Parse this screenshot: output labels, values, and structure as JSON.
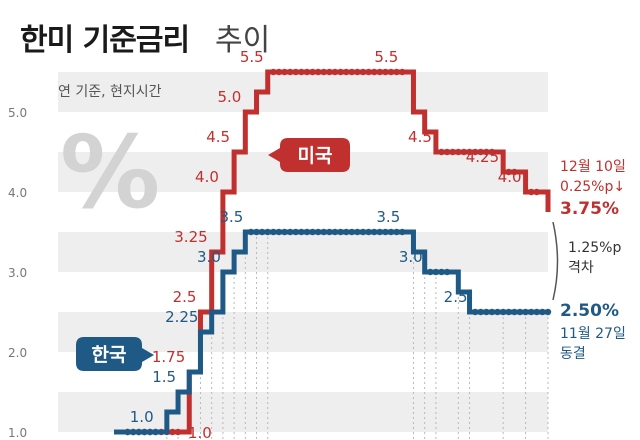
{
  "title": {
    "main": "한미 기준금리",
    "sub": "추이"
  },
  "note": "연 기준, 현지시간",
  "percent_symbol": "%",
  "colors": {
    "us": "#c0302e",
    "kr": "#1f5a86",
    "band": "#eeeeee"
  },
  "chart_data": {
    "type": "line",
    "line_shape": "step",
    "ylim": [
      1.0,
      5.5
    ],
    "yticks": [
      "1.0",
      "2.0",
      "3.0",
      "4.0",
      "5.0"
    ],
    "grid": "horizontal bands",
    "series": [
      {
        "name": "미국",
        "values": [
          1.0,
          1.0,
          1.0,
          1.0,
          1.0,
          1.0,
          1.75,
          2.5,
          3.25,
          4.0,
          4.5,
          5.0,
          5.25,
          5.5,
          5.5,
          5.5,
          5.5,
          5.5,
          5.5,
          5.5,
          5.5,
          5.5,
          5.5,
          5.5,
          5.5,
          5.5,
          5.0,
          4.75,
          4.5,
          4.5,
          4.5,
          4.5,
          4.5,
          4.5,
          4.25,
          4.25,
          4.0,
          4.0,
          3.75
        ],
        "labels": [
          {
            "i": 6,
            "text": "1.75"
          },
          {
            "i": 7,
            "text": "2.5"
          },
          {
            "i": 8,
            "text": "3.25"
          },
          {
            "i": 9,
            "text": "4.0"
          },
          {
            "i": 10,
            "text": "4.5"
          },
          {
            "i": 11,
            "text": "5.0"
          },
          {
            "i": 13,
            "text": "5.5"
          },
          {
            "i": 25,
            "text": "5.5"
          },
          {
            "i": 28,
            "text": "4.5"
          },
          {
            "i": 34,
            "text": "4.25"
          },
          {
            "i": 36,
            "text": "4.0"
          }
        ]
      },
      {
        "name": "한국",
        "values": [
          1.0,
          1.0,
          1.0,
          1.0,
          1.25,
          1.5,
          1.75,
          2.25,
          2.5,
          3.0,
          3.25,
          3.5,
          3.5,
          3.5,
          3.5,
          3.5,
          3.5,
          3.5,
          3.5,
          3.5,
          3.5,
          3.5,
          3.5,
          3.5,
          3.5,
          3.5,
          3.25,
          3.0,
          3.0,
          3.0,
          2.75,
          2.5,
          2.5,
          2.5,
          2.5,
          2.5,
          2.5,
          2.5,
          2.5
        ],
        "labels": [
          {
            "i": 3,
            "text": "1.0"
          },
          {
            "i": 5,
            "text": "1.5"
          },
          {
            "i": 7,
            "text": "2.25"
          },
          {
            "i": 9,
            "text": "3.0"
          },
          {
            "i": 11,
            "text": "3.5"
          },
          {
            "i": 25,
            "text": "3.5"
          },
          {
            "i": 27,
            "text": "3.0"
          },
          {
            "i": 31,
            "text": "2.5"
          }
        ]
      }
    ],
    "extra_labels": [
      {
        "text": "1.0",
        "series": "미국",
        "value": 1.0
      }
    ],
    "annotations": {
      "us_date": "12월 10일",
      "us_change": "0.25%p↓",
      "us_final": "3.75%",
      "gap_value": "1.25%p",
      "gap_label": "격차",
      "kr_final": "2.50%",
      "kr_date": "11월 27일",
      "kr_status": "동결"
    },
    "badges": {
      "us": "미국",
      "kr": "한국"
    }
  }
}
